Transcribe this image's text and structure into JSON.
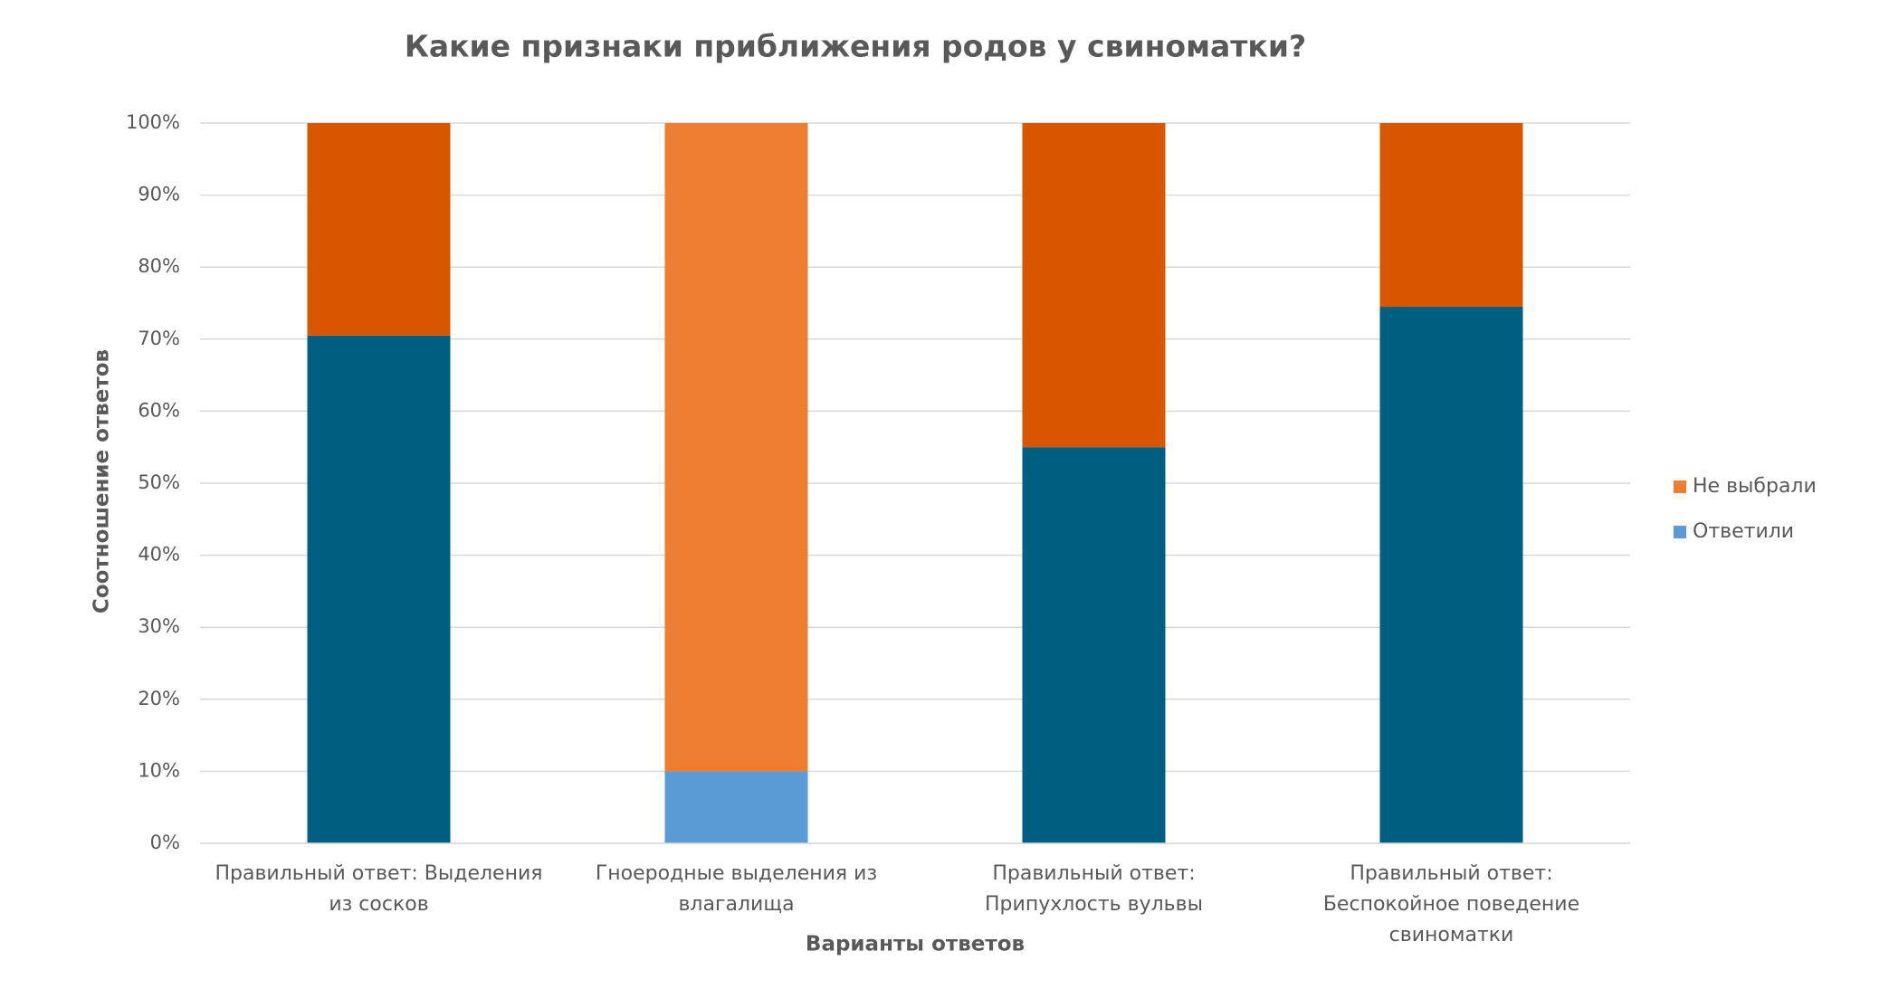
{
  "chart_data": {
    "type": "stacked_bar",
    "title": "Какие признаки приближения родов у свиноматки?",
    "x_label": "Варианты ответов",
    "y_label": "Соотношение ответов",
    "categories": [
      "Правильный ответ: Выделения из сосков",
      "Гноеродные выделения из влагалища",
      "Правильный ответ: Припухлость вульвы",
      "Правильный ответ: Беспокойное поведение свиноматки"
    ],
    "series": [
      {
        "name": "Ответили",
        "color": "#5b9bd5",
        "point_colors": [
          "#005f80",
          "#5b9bd5",
          "#005f80",
          "#005f80"
        ],
        "values": [
          70.5,
          10,
          55,
          74.5
        ]
      },
      {
        "name": "Не выбрали",
        "color": "#ed7d31",
        "point_colors": [
          "#d95600",
          "#ed7d31",
          "#d95600",
          "#d95600"
        ],
        "values": [
          29.5,
          90,
          45,
          25.5
        ]
      }
    ],
    "ylim": [
      0,
      100
    ],
    "yticks": [
      {
        "value": 0,
        "label": "0%"
      },
      {
        "value": 10,
        "label": "10%"
      },
      {
        "value": 20,
        "label": "20%"
      },
      {
        "value": 30,
        "label": "30%"
      },
      {
        "value": 40,
        "label": "40%"
      },
      {
        "value": 50,
        "label": "50%"
      },
      {
        "value": 60,
        "label": "60%"
      },
      {
        "value": 70,
        "label": "70%"
      },
      {
        "value": 80,
        "label": "80%"
      },
      {
        "value": 90,
        "label": "90%"
      },
      {
        "value": 100,
        "label": "100%"
      }
    ],
    "grid": true,
    "legend": "right"
  }
}
